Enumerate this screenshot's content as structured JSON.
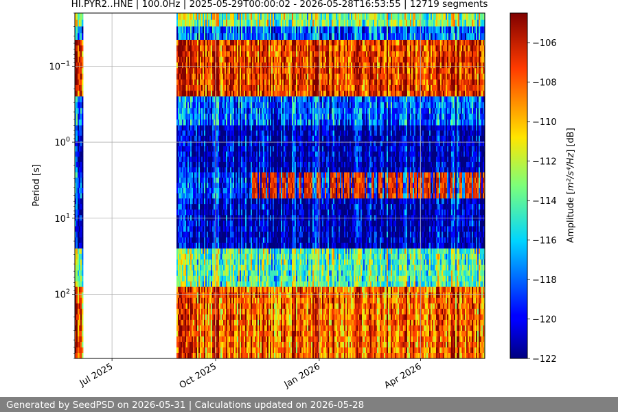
{
  "chart_data": {
    "type": "heatmap",
    "title": "HI.PYR2..HNE | 100.0Hz | 2025-05-29T00:00:02 - 2026-05-28T16:53:55 | 12719 segments",
    "ylabel": "Period [s]",
    "y_scale": "log",
    "y_inverted": true,
    "ylim": [
      0.02,
      700
    ],
    "y_ticks": [
      {
        "value": 0.1,
        "base": "10",
        "exp": "−1"
      },
      {
        "value": 1,
        "base": "10",
        "exp": "0"
      },
      {
        "value": 10,
        "base": "10",
        "exp": "1"
      },
      {
        "value": 100,
        "base": "10",
        "exp": "2"
      }
    ],
    "xlim": [
      "2025-05-29",
      "2026-05-28"
    ],
    "x_ticks": [
      {
        "date": "2025-07-01",
        "label": "Jul 2025"
      },
      {
        "date": "2025-10-01",
        "label": "Oct 2025"
      },
      {
        "date": "2026-01-01",
        "label": "Jan 2026"
      },
      {
        "date": "2026-04-01",
        "label": "Apr 2026"
      }
    ],
    "grid": true,
    "data_gaps": [
      {
        "start": "2025-06-05",
        "end": "2025-08-27"
      }
    ],
    "colorbar": {
      "label_prefix": "Amplitude [",
      "label_math": "m²/s⁴/Hz",
      "label_suffix": "] [dB]",
      "range": [
        -122,
        -104.5
      ],
      "ticks": [
        -106,
        -108,
        -110,
        -112,
        -114,
        -116,
        -118,
        -120,
        -122
      ],
      "colormap": "jet"
    },
    "spectral_bands": [
      {
        "period_range": [
          0.02,
          0.03
        ],
        "level_db": -113
      },
      {
        "period_range": [
          0.03,
          0.045
        ],
        "level_db": -118
      },
      {
        "period_range": [
          0.045,
          0.25
        ],
        "level_db": -107
      },
      {
        "period_range": [
          0.25,
          0.6
        ],
        "level_db": -118
      },
      {
        "period_range": [
          0.6,
          2.5
        ],
        "level_db": -121
      },
      {
        "period_range": [
          2.5,
          5.5
        ],
        "level_db": -119
      },
      {
        "period_range": [
          5.5,
          25
        ],
        "level_db": -121
      },
      {
        "period_range": [
          25,
          80
        ],
        "level_db": -114
      },
      {
        "period_range": [
          80,
          700
        ],
        "level_db": -108
      }
    ],
    "seasonal_feature": {
      "period_range": [
        2.5,
        5.5
      ],
      "peak_level_db": -107,
      "active_months": [
        "2025-11",
        "2025-12",
        "2026-01",
        "2026-02",
        "2026-03",
        "2026-04",
        "2026-05"
      ]
    }
  },
  "footer": {
    "text": "Generated by SeedPSD on 2026-05-31 | Calculations updated on 2026-05-28"
  }
}
